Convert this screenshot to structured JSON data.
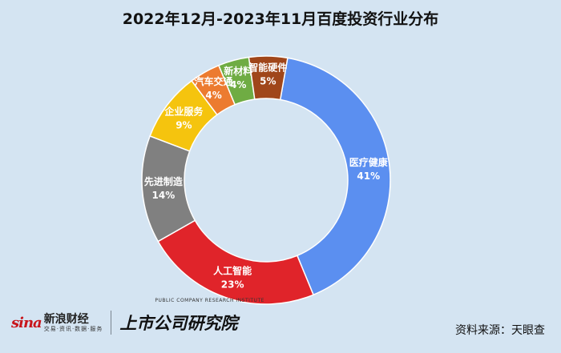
{
  "chart_data": {
    "type": "pie",
    "donut": true,
    "title": "2022年12月-2023年11月百度投资行业分布",
    "slices": [
      {
        "label": "医疗健康",
        "value": 41,
        "display": "41%",
        "color": "#5b8ff0"
      },
      {
        "label": "人工智能",
        "value": 23,
        "display": "23%",
        "color": "#e0242a"
      },
      {
        "label": "先进制造",
        "value": 14,
        "display": "14%",
        "color": "#808080"
      },
      {
        "label": "企业服务",
        "value": 9,
        "display": "9%",
        "color": "#f5c40e"
      },
      {
        "label": "汽车交通",
        "value": 4,
        "display": "4%",
        "color": "#ec7b30"
      },
      {
        "label": "新材料",
        "value": 4,
        "display": "4%",
        "color": "#6fac43"
      },
      {
        "label": "智能硬件",
        "value": 5,
        "display": "5%",
        "color": "#a0461a"
      }
    ]
  },
  "footer": {
    "sina_mark": "sina",
    "sina_name": "新浪财经",
    "sina_tagline": "交易·资讯·数据·服务",
    "institute_name": "上市公司研究院",
    "institute_sub": "PUBLIC COMPANY RESEARCH INSTITUTE",
    "source": "资料来源：天眼查"
  },
  "colors": {
    "background": "#d4e4f2",
    "slice_stroke": "#ffffff"
  }
}
